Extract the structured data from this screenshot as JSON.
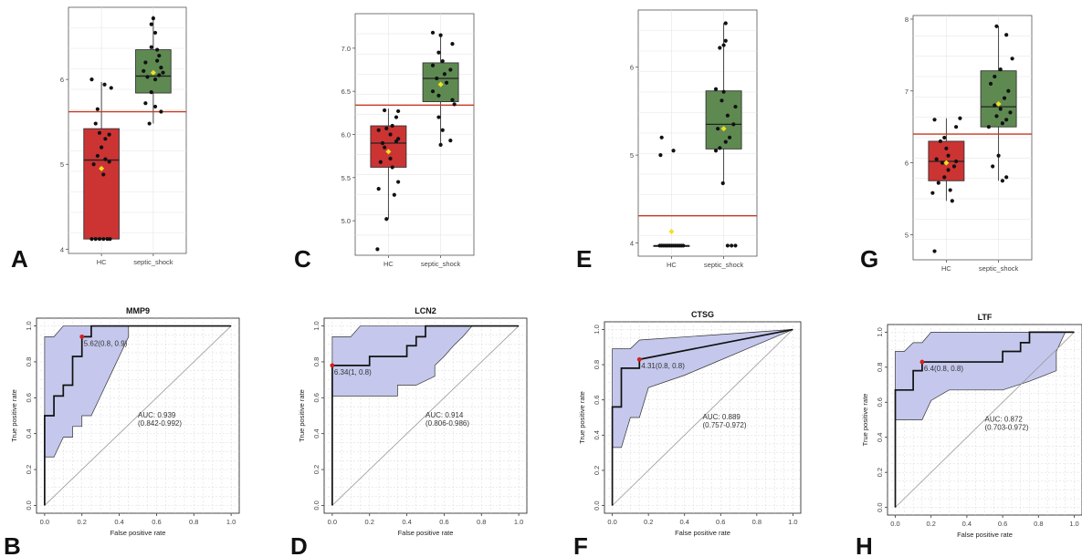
{
  "chart_data": [
    {
      "panel": "A",
      "type": "box",
      "categories": [
        "HC",
        "septic_shock"
      ],
      "ylim": [
        3.95,
        6.85
      ],
      "yticks": [
        4,
        5,
        6
      ],
      "cutoff": 5.62,
      "boxes": [
        {
          "q1": 4.12,
          "median": 5.05,
          "q3": 5.42,
          "wlow": 4.12,
          "whigh": 5.97,
          "mean": 4.95,
          "color": "#cc3333"
        },
        {
          "q1": 5.84,
          "median": 6.04,
          "q3": 6.35,
          "wlow": 5.48,
          "whigh": 6.75,
          "mean": 6.08,
          "color": "#5e8a52"
        }
      ],
      "points": [
        [
          [
            4.12,
            -0.25
          ],
          [
            4.12,
            -0.15
          ],
          [
            4.12,
            -0.05
          ],
          [
            4.12,
            0.05
          ],
          [
            4.12,
            0.15
          ],
          [
            4.12,
            0.22
          ],
          [
            4.88,
            0.05
          ],
          [
            5.0,
            -0.2
          ],
          [
            5.03,
            0.2
          ],
          [
            5.06,
            0.1
          ],
          [
            5.1,
            -0.1
          ],
          [
            5.2,
            0.0
          ],
          [
            5.3,
            0.1
          ],
          [
            5.35,
            0.2
          ],
          [
            5.37,
            -0.05
          ],
          [
            5.48,
            -0.15
          ],
          [
            5.65,
            -0.1
          ],
          [
            5.9,
            0.25
          ],
          [
            5.94,
            0.08
          ],
          [
            6.0,
            -0.25
          ]
        ],
        [
          [
            5.48,
            -0.1
          ],
          [
            5.62,
            0.2
          ],
          [
            5.68,
            0.05
          ],
          [
            5.72,
            -0.2
          ],
          [
            5.85,
            -0.05
          ],
          [
            6.0,
            0.05
          ],
          [
            6.03,
            -0.15
          ],
          [
            6.05,
            0.15
          ],
          [
            6.08,
            0.25
          ],
          [
            6.1,
            -0.25
          ],
          [
            6.14,
            0.2
          ],
          [
            6.2,
            -0.2
          ],
          [
            6.22,
            0.1
          ],
          [
            6.28,
            0.15
          ],
          [
            6.35,
            0.1
          ],
          [
            6.38,
            -0.05
          ],
          [
            6.55,
            0.05
          ],
          [
            6.65,
            -0.05
          ],
          [
            6.72,
            0.0
          ]
        ]
      ]
    },
    {
      "panel": "C",
      "type": "box",
      "categories": [
        "HC",
        "septic_shock"
      ],
      "ylim": [
        4.6,
        7.4
      ],
      "yticks": [
        5.0,
        5.5,
        6.0,
        6.5,
        7.0
      ],
      "yticklabels": [
        "5.0",
        "5.5",
        "6.0",
        "6.5",
        "7.0"
      ],
      "cutoff": 6.34,
      "boxes": [
        {
          "q1": 5.62,
          "median": 5.9,
          "q3": 6.1,
          "wlow": 5.02,
          "whigh": 6.3,
          "mean": 5.8,
          "color": "#cc3333"
        },
        {
          "q1": 6.38,
          "median": 6.65,
          "q3": 6.83,
          "wlow": 5.88,
          "whigh": 7.15,
          "mean": 6.58,
          "color": "#5e8a52"
        }
      ],
      "points": [
        [
          [
            4.67,
            -0.28
          ],
          [
            5.02,
            -0.05
          ],
          [
            5.3,
            0.15
          ],
          [
            5.37,
            -0.25
          ],
          [
            5.45,
            0.25
          ],
          [
            5.62,
            0.1
          ],
          [
            5.68,
            -0.2
          ],
          [
            5.72,
            0.05
          ],
          [
            5.8,
            0.0
          ],
          [
            5.85,
            -0.1
          ],
          [
            5.9,
            -0.15
          ],
          [
            5.92,
            0.2
          ],
          [
            5.95,
            0.25
          ],
          [
            6.0,
            0.05
          ],
          [
            6.05,
            -0.25
          ],
          [
            6.07,
            -0.05
          ],
          [
            6.1,
            0.1
          ],
          [
            6.2,
            0.2
          ],
          [
            6.27,
            0.25
          ],
          [
            6.28,
            -0.1
          ]
        ],
        [
          [
            5.88,
            0.0
          ],
          [
            5.93,
            0.25
          ],
          [
            6.05,
            0.05
          ],
          [
            6.2,
            -0.05
          ],
          [
            6.35,
            0.35
          ],
          [
            6.4,
            0.3
          ],
          [
            6.45,
            -0.05
          ],
          [
            6.5,
            -0.2
          ],
          [
            6.6,
            0.15
          ],
          [
            6.65,
            -0.1
          ],
          [
            6.7,
            0.1
          ],
          [
            6.75,
            0.25
          ],
          [
            6.8,
            -0.2
          ],
          [
            6.85,
            0.05
          ],
          [
            6.95,
            -0.05
          ],
          [
            7.05,
            0.3
          ],
          [
            7.15,
            0.0
          ],
          [
            7.18,
            -0.2
          ]
        ]
      ]
    },
    {
      "panel": "E",
      "type": "box",
      "categories": [
        "HC",
        "septic_shock"
      ],
      "ylim": [
        3.85,
        6.65
      ],
      "yticks": [
        4,
        5,
        6
      ],
      "cutoff": 4.31,
      "boxes": [
        {
          "q1": 3.97,
          "median": 3.97,
          "q3": 3.97,
          "wlow": 3.97,
          "whigh": 3.97,
          "mean": 4.13,
          "color": "#cc3333"
        },
        {
          "q1": 5.07,
          "median": 5.35,
          "q3": 5.73,
          "wlow": 4.68,
          "whigh": 6.5,
          "mean": 5.3,
          "color": "#5e8a52"
        }
      ],
      "points": [
        [
          [
            3.97,
            -0.3
          ],
          [
            3.97,
            -0.25
          ],
          [
            3.97,
            -0.2
          ],
          [
            3.97,
            -0.15
          ],
          [
            3.97,
            -0.1
          ],
          [
            3.97,
            -0.05
          ],
          [
            3.97,
            0.0
          ],
          [
            3.97,
            0.05
          ],
          [
            3.97,
            0.1
          ],
          [
            3.97,
            0.15
          ],
          [
            3.97,
            0.2
          ],
          [
            3.97,
            0.25
          ],
          [
            3.97,
            0.3
          ],
          [
            5.0,
            -0.28
          ],
          [
            5.05,
            0.05
          ],
          [
            5.2,
            -0.25
          ]
        ],
        [
          [
            3.97,
            0.1
          ],
          [
            3.97,
            0.2
          ],
          [
            3.97,
            0.3
          ],
          [
            4.68,
            -0.02
          ],
          [
            5.05,
            -0.2
          ],
          [
            5.08,
            -0.1
          ],
          [
            5.15,
            0.05
          ],
          [
            5.2,
            0.15
          ],
          [
            5.3,
            -0.15
          ],
          [
            5.35,
            0.25
          ],
          [
            5.45,
            0.1
          ],
          [
            5.55,
            0.3
          ],
          [
            5.62,
            -0.05
          ],
          [
            5.72,
            0.0
          ],
          [
            5.75,
            -0.2
          ],
          [
            6.22,
            -0.1
          ],
          [
            6.25,
            0.0
          ],
          [
            6.3,
            0.05
          ],
          [
            6.5,
            0.05
          ]
        ]
      ]
    },
    {
      "panel": "G",
      "type": "box",
      "categories": [
        "HC",
        "septic_shock"
      ],
      "ylim": [
        4.65,
        8.05
      ],
      "yticks": [
        5,
        6,
        7,
        8
      ],
      "cutoff": 6.4,
      "boxes": [
        {
          "q1": 5.75,
          "median": 6.02,
          "q3": 6.3,
          "wlow": 5.47,
          "whigh": 6.62,
          "mean": 6.0,
          "color": "#cc3333"
        },
        {
          "q1": 6.5,
          "median": 6.78,
          "q3": 7.28,
          "wlow": 5.75,
          "whigh": 7.9,
          "mean": 6.82,
          "color": "#5e8a52"
        }
      ],
      "points": [
        [
          [
            4.77,
            -0.3
          ],
          [
            5.47,
            0.15
          ],
          [
            5.58,
            -0.35
          ],
          [
            5.62,
            0.1
          ],
          [
            5.72,
            -0.2
          ],
          [
            5.8,
            -0.05
          ],
          [
            5.9,
            0.05
          ],
          [
            5.95,
            0.2
          ],
          [
            6.0,
            -0.1
          ],
          [
            6.02,
            0.25
          ],
          [
            6.05,
            -0.25
          ],
          [
            6.1,
            0.05
          ],
          [
            6.2,
            0.0
          ],
          [
            6.3,
            -0.15
          ],
          [
            6.35,
            -0.05
          ],
          [
            6.5,
            0.25
          ],
          [
            6.6,
            -0.3
          ],
          [
            6.62,
            0.35
          ]
        ],
        [
          [
            5.75,
            0.1
          ],
          [
            5.8,
            0.2
          ],
          [
            5.95,
            -0.15
          ],
          [
            6.1,
            0.0
          ],
          [
            6.5,
            -0.25
          ],
          [
            6.55,
            0.1
          ],
          [
            6.6,
            0.2
          ],
          [
            6.65,
            -0.05
          ],
          [
            6.7,
            0.3
          ],
          [
            6.75,
            0.05
          ],
          [
            6.8,
            -0.1
          ],
          [
            6.9,
            0.15
          ],
          [
            7.0,
            0.25
          ],
          [
            7.1,
            -0.2
          ],
          [
            7.2,
            -0.1
          ],
          [
            7.3,
            0.05
          ],
          [
            7.45,
            0.35
          ],
          [
            7.78,
            0.2
          ],
          [
            7.9,
            -0.05
          ]
        ]
      ]
    },
    {
      "panel": "B",
      "type": "roc",
      "title": "MMP9",
      "xlabel": "False positive rate",
      "ylabel": "True positive rate",
      "xlim": [
        0,
        1
      ],
      "ylim": [
        0,
        1
      ],
      "ticks": [
        "0.0",
        "0.2",
        "0.4",
        "0.6",
        "0.8",
        "1.0"
      ],
      "curve": [
        [
          0,
          0
        ],
        [
          0,
          0.5
        ],
        [
          0.05,
          0.5
        ],
        [
          0.05,
          0.61
        ],
        [
          0.1,
          0.61
        ],
        [
          0.1,
          0.67
        ],
        [
          0.15,
          0.67
        ],
        [
          0.15,
          0.83
        ],
        [
          0.2,
          0.83
        ],
        [
          0.2,
          0.94
        ],
        [
          0.25,
          0.94
        ],
        [
          0.25,
          1.0
        ],
        [
          1,
          1
        ]
      ],
      "band_upper": [
        [
          0,
          0.94
        ],
        [
          0.05,
          0.94
        ],
        [
          0.1,
          1.0
        ],
        [
          1,
          1
        ]
      ],
      "band_lower": [
        [
          0,
          0.27
        ],
        [
          0.05,
          0.27
        ],
        [
          0.1,
          0.38
        ],
        [
          0.15,
          0.38
        ],
        [
          0.15,
          0.44
        ],
        [
          0.2,
          0.44
        ],
        [
          0.2,
          0.5
        ],
        [
          0.25,
          0.5
        ],
        [
          0.3,
          0.61
        ],
        [
          0.35,
          0.72
        ],
        [
          0.4,
          0.83
        ],
        [
          0.45,
          0.94
        ],
        [
          0.45,
          1.0
        ]
      ],
      "threshold": {
        "label": "5.62(0.8, 0.9)",
        "x": 0.2,
        "y": 0.94
      },
      "auc_label": "AUC: 0.939",
      "auc_ci": "(0.842-0.992)"
    },
    {
      "panel": "D",
      "type": "roc",
      "title": "LCN2",
      "xlabel": "False positive rate",
      "ylabel": "True positive rate",
      "xlim": [
        0,
        1
      ],
      "ylim": [
        0,
        1
      ],
      "ticks": [
        "0.0",
        "0.2",
        "0.4",
        "0.6",
        "0.8",
        "1.0"
      ],
      "curve": [
        [
          0,
          0
        ],
        [
          0,
          0.78
        ],
        [
          0.2,
          0.78
        ],
        [
          0.2,
          0.83
        ],
        [
          0.4,
          0.83
        ],
        [
          0.4,
          0.89
        ],
        [
          0.45,
          0.89
        ],
        [
          0.45,
          0.94
        ],
        [
          0.5,
          0.94
        ],
        [
          0.5,
          1.0
        ],
        [
          1,
          1
        ]
      ],
      "band_upper": [
        [
          0,
          0.94
        ],
        [
          0.1,
          0.94
        ],
        [
          0.15,
          1.0
        ],
        [
          1,
          1
        ]
      ],
      "band_lower": [
        [
          0,
          0.61
        ],
        [
          0.2,
          0.61
        ],
        [
          0.35,
          0.61
        ],
        [
          0.35,
          0.67
        ],
        [
          0.45,
          0.67
        ],
        [
          0.55,
          0.72
        ],
        [
          0.55,
          0.78
        ],
        [
          0.6,
          0.83
        ],
        [
          0.65,
          0.89
        ],
        [
          0.7,
          0.94
        ],
        [
          0.75,
          1.0
        ]
      ],
      "threshold": {
        "label": "6.34(1, 0.8)",
        "x": 0.0,
        "y": 0.78
      },
      "auc_label": "AUC: 0.914",
      "auc_ci": "(0.806-0.986)"
    },
    {
      "panel": "F",
      "type": "roc",
      "title": "CTSG",
      "xlabel": "False positive rate",
      "ylabel": "True positive rate",
      "xlim": [
        0,
        1
      ],
      "ylim": [
        0,
        1
      ],
      "ticks": [
        "0.0",
        "0.2",
        "0.4",
        "0.6",
        "0.8",
        "1.0"
      ],
      "curve": [
        [
          0,
          0
        ],
        [
          0,
          0.56
        ],
        [
          0.05,
          0.56
        ],
        [
          0.05,
          0.78
        ],
        [
          0.15,
          0.78
        ],
        [
          0.15,
          0.83
        ],
        [
          1,
          1
        ]
      ],
      "band_upper": [
        [
          0,
          0.89
        ],
        [
          0.1,
          0.89
        ],
        [
          0.15,
          0.94
        ],
        [
          1,
          1
        ]
      ],
      "band_lower": [
        [
          0,
          0.33
        ],
        [
          0.05,
          0.33
        ],
        [
          0.1,
          0.5
        ],
        [
          0.15,
          0.5
        ],
        [
          0.2,
          0.67
        ],
        [
          0.4,
          0.74
        ],
        [
          1,
          1
        ]
      ],
      "threshold": {
        "label": "4.31(0.8, 0.8)",
        "x": 0.15,
        "y": 0.83
      },
      "auc_label": "AUC: 0.889",
      "auc_ci": "(0.757-0.972)"
    },
    {
      "panel": "H",
      "type": "roc",
      "title": "LTF",
      "xlabel": "False positive rate",
      "ylabel": "True positive rate",
      "xlim": [
        0,
        1
      ],
      "ylim": [
        0,
        1
      ],
      "ticks": [
        "0.0",
        "0.2",
        "0.4",
        "0.6",
        "0.8",
        "1.0"
      ],
      "curve": [
        [
          0,
          0
        ],
        [
          0,
          0.67
        ],
        [
          0.1,
          0.67
        ],
        [
          0.1,
          0.78
        ],
        [
          0.15,
          0.78
        ],
        [
          0.15,
          0.83
        ],
        [
          0.6,
          0.83
        ],
        [
          0.6,
          0.89
        ],
        [
          0.7,
          0.89
        ],
        [
          0.7,
          0.94
        ],
        [
          0.75,
          0.94
        ],
        [
          0.75,
          1.0
        ],
        [
          1,
          1
        ]
      ],
      "band_upper": [
        [
          0,
          0.89
        ],
        [
          0.05,
          0.89
        ],
        [
          0.1,
          0.94
        ],
        [
          0.15,
          0.94
        ],
        [
          0.2,
          1.0
        ],
        [
          1,
          1
        ]
      ],
      "band_lower": [
        [
          0,
          0.5
        ],
        [
          0.15,
          0.5
        ],
        [
          0.2,
          0.61
        ],
        [
          0.3,
          0.67
        ],
        [
          0.45,
          0.67
        ],
        [
          0.6,
          0.67
        ],
        [
          0.75,
          0.72
        ],
        [
          0.9,
          0.78
        ],
        [
          0.9,
          0.89
        ],
        [
          0.95,
          1.0
        ]
      ],
      "threshold": {
        "label": "6.4(0.8, 0.8)",
        "x": 0.15,
        "y": 0.83
      },
      "auc_label": "AUC: 0.872",
      "auc_ci": "(0.703-0.972)"
    }
  ],
  "colors": {
    "cutoff_line": "#c8391f",
    "mean_marker": "#f0e020",
    "roc_band": "#c5c8ec",
    "roc_curve": "#111111",
    "threshold_point": "#d22020"
  }
}
